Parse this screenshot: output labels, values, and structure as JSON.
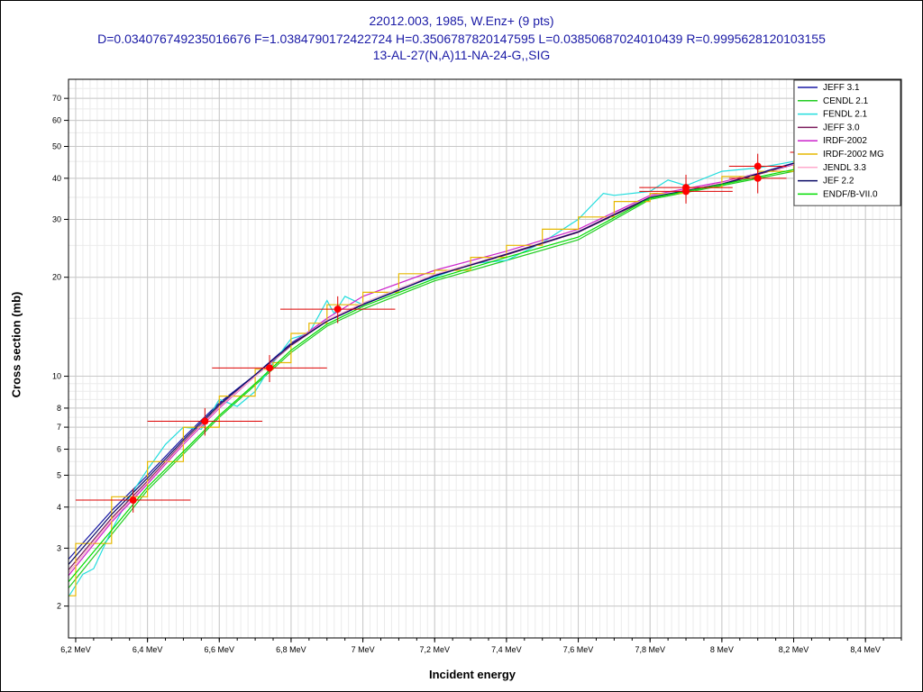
{
  "chart_data": {
    "type": "line",
    "title": "22012.003, 1985, W.Enz+ (9 pts)",
    "subtitle": "D=0.034076749235016676 F=1.0384790172422724 H=0.3506787820147595 L=0.03850687024010439 R=0.9995628120103155",
    "reaction": "13-AL-27(N,A)11-NA-24-G,,SIG",
    "xlabel": "Incident energy",
    "ylabel": "Cross section (mb)",
    "xlim": [
      6.18,
      8.5
    ],
    "ylim": [
      1.6,
      80
    ],
    "yscale": "log",
    "grid": true,
    "legend_position": "top-right",
    "x_ticks": [
      6.2,
      6.4,
      6.6,
      6.8,
      7.0,
      7.2,
      7.4,
      7.6,
      7.8,
      8.0,
      8.2,
      8.4
    ],
    "x_tick_labels": [
      "6,2 MeV",
      "6,4 MeV",
      "6,6 MeV",
      "6,8 MeV",
      "7 MeV",
      "7,2 MeV",
      "7,4 MeV",
      "7,6 MeV",
      "7,8 MeV",
      "8 MeV",
      "8,2 MeV",
      "8,4 MeV"
    ],
    "y_ticks": [
      2,
      3,
      4,
      5,
      6,
      7,
      8,
      10,
      20,
      30,
      40,
      50,
      60,
      70
    ],
    "y_tick_labels": [
      "2",
      "3",
      "4",
      "5",
      "6",
      "7",
      "8",
      "10",
      "20",
      "30",
      "40",
      "50",
      "60",
      "70"
    ],
    "experimental_points": [
      {
        "x": 6.36,
        "y": 4.2,
        "xerr": 0.16,
        "yerr": 0.35
      },
      {
        "x": 6.56,
        "y": 7.3,
        "xerr": 0.16,
        "yerr": 0.7
      },
      {
        "x": 6.74,
        "y": 10.6,
        "xerr": 0.16,
        "yerr": 1.0
      },
      {
        "x": 6.93,
        "y": 16.0,
        "xerr": 0.16,
        "yerr": 1.5
      },
      {
        "x": 7.9,
        "y": 37.5,
        "xerr": 0.13,
        "yerr": 3.5
      },
      {
        "x": 7.9,
        "y": 36.5,
        "xerr": 0.13,
        "yerr": 3.0
      },
      {
        "x": 8.1,
        "y": 43.5,
        "xerr": 0.08,
        "yerr": 4.0
      },
      {
        "x": 8.1,
        "y": 40.0,
        "xerr": 0.08,
        "yerr": 4.0
      },
      {
        "x": 8.22,
        "y": 48.0,
        "xerr": 0.03,
        "yerr": 4.0
      }
    ],
    "series": [
      {
        "name": "JEFF 3.1",
        "color": "#1a1aa6",
        "x": [
          6.17,
          6.3,
          6.4,
          6.5,
          6.6,
          6.7,
          6.8,
          6.9,
          7.0,
          7.2,
          7.4,
          7.6,
          7.8,
          8.0,
          8.2,
          8.5
        ],
        "y": [
          2.7,
          3.9,
          5.0,
          6.5,
          8.3,
          10.1,
          12.6,
          14.8,
          16.6,
          20.3,
          23.5,
          27.5,
          35.0,
          38.5,
          44.5,
          49.0
        ]
      },
      {
        "name": "CENDL 2.1",
        "color": "#22cc22",
        "x": [
          6.17,
          6.3,
          6.4,
          6.5,
          6.6,
          6.7,
          6.8,
          6.9,
          7.0,
          7.2,
          7.4,
          7.6,
          7.8,
          8.0,
          8.2,
          8.5
        ],
        "y": [
          2.2,
          3.3,
          4.5,
          5.8,
          7.5,
          9.4,
          11.8,
          14.2,
          16.0,
          19.5,
          22.5,
          26.0,
          34.5,
          38.0,
          42.0,
          47.0
        ]
      },
      {
        "name": "FENDL 2.1",
        "color": "#22dddd",
        "x": [
          6.17,
          6.22,
          6.25,
          6.3,
          6.35,
          6.4,
          6.45,
          6.5,
          6.55,
          6.6,
          6.65,
          6.7,
          6.75,
          6.8,
          6.85,
          6.9,
          6.92,
          6.95,
          7.0,
          7.1,
          7.2,
          7.3,
          7.4,
          7.5,
          7.6,
          7.67,
          7.7,
          7.8,
          7.85,
          7.9,
          8.0,
          8.1,
          8.2,
          8.5
        ],
        "y": [
          2.05,
          2.5,
          2.6,
          3.4,
          4.3,
          5.2,
          6.2,
          7.0,
          6.9,
          8.5,
          8.1,
          9.0,
          11.0,
          13.0,
          13.5,
          17.0,
          15.5,
          17.5,
          16.5,
          18.5,
          20.0,
          22.0,
          22.5,
          25.5,
          30.0,
          36.0,
          35.5,
          36.5,
          39.5,
          38.0,
          42.0,
          43.0,
          45.0,
          48.0
        ]
      },
      {
        "name": "JEFF 3.0",
        "color": "#7a1a5a",
        "x": [
          6.17,
          6.3,
          6.4,
          6.5,
          6.6,
          6.7,
          6.8,
          6.9,
          7.0,
          7.2,
          7.4,
          7.6,
          7.8,
          8.0,
          8.2,
          8.5
        ],
        "y": [
          2.5,
          3.7,
          4.8,
          6.3,
          8.1,
          10.0,
          12.4,
          14.7,
          16.5,
          20.2,
          23.4,
          27.4,
          34.8,
          38.3,
          44.0,
          48.5
        ]
      },
      {
        "name": "IRDF-2002",
        "color": "#cc22cc",
        "x": [
          6.17,
          6.3,
          6.4,
          6.5,
          6.6,
          6.7,
          6.8,
          6.9,
          7.0,
          7.2,
          7.4,
          7.6,
          7.8,
          8.0,
          8.2,
          8.5
        ],
        "y": [
          2.4,
          3.6,
          4.7,
          6.2,
          8.0,
          10.0,
          12.5,
          15.0,
          17.5,
          21.0,
          24.0,
          28.0,
          35.5,
          39.0,
          44.0,
          48.5
        ]
      },
      {
        "name": "IRDF-2002 MG",
        "color": "#e6b800",
        "step": true,
        "x": [
          6.17,
          6.2,
          6.3,
          6.35,
          6.4,
          6.5,
          6.55,
          6.6,
          6.65,
          6.7,
          6.75,
          6.8,
          6.85,
          6.9,
          7.0,
          7.1,
          7.2,
          7.3,
          7.4,
          7.5,
          7.6,
          7.7,
          7.8,
          7.9,
          8.0,
          8.1,
          8.2,
          8.5
        ],
        "y": [
          2.15,
          3.1,
          4.3,
          4.3,
          5.5,
          7.0,
          7.0,
          8.7,
          8.7,
          10.5,
          11.0,
          13.5,
          14.5,
          16.5,
          18.0,
          20.5,
          21.0,
          23.0,
          25.0,
          28.0,
          30.5,
          34.0,
          36.0,
          37.5,
          40.5,
          42.0,
          45.0,
          48.0
        ]
      },
      {
        "name": "JENDL 3.3",
        "color": "#ffaacc",
        "x": [
          6.17,
          6.3,
          6.4,
          6.5,
          6.6,
          6.7,
          6.8,
          6.9,
          7.0,
          7.2,
          7.4,
          7.6,
          7.8,
          8.0,
          8.2,
          8.5
        ],
        "y": [
          2.45,
          3.65,
          4.75,
          6.25,
          8.05,
          10.0,
          12.5,
          14.8,
          16.7,
          20.4,
          23.6,
          27.6,
          35.2,
          38.7,
          44.2,
          48.7
        ]
      },
      {
        "name": "JEF 2.2",
        "color": "#0a0a66",
        "x": [
          6.17,
          6.3,
          6.4,
          6.5,
          6.6,
          6.7,
          6.8,
          6.9,
          7.0,
          7.2,
          7.4,
          7.6,
          7.8,
          8.0,
          8.2,
          8.5
        ],
        "y": [
          2.6,
          3.8,
          4.9,
          6.4,
          8.2,
          10.1,
          12.5,
          14.7,
          16.5,
          20.2,
          23.5,
          27.5,
          35.0,
          38.4,
          44.4,
          49.0
        ]
      },
      {
        "name": "ENDF/B-VII.0",
        "color": "#00dd00",
        "x": [
          6.17,
          6.3,
          6.4,
          6.5,
          6.6,
          6.7,
          6.8,
          6.9,
          7.0,
          7.2,
          7.4,
          7.6,
          7.8,
          8.0,
          8.2,
          8.5
        ],
        "y": [
          2.3,
          3.4,
          4.6,
          5.9,
          7.6,
          9.5,
          12.0,
          14.4,
          16.3,
          19.8,
          23.0,
          26.5,
          34.8,
          38.3,
          42.5,
          47.5
        ]
      }
    ]
  }
}
